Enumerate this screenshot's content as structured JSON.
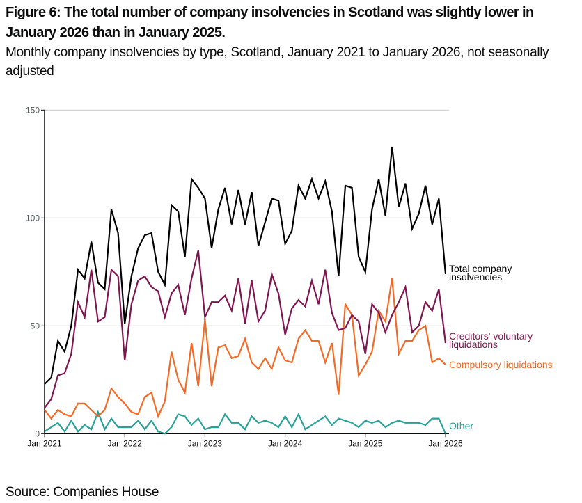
{
  "figure": {
    "title": "Figure 6: The total number of company insolvencies in Scotland was slightly lower in January 2026 than in January 2025.",
    "subtitle": "Monthly company insolvencies by type, Scotland, January 2021 to January 2026, not seasonally adjusted",
    "source": "Source: Companies House"
  },
  "chart_data": {
    "type": "line",
    "title": "Monthly company insolvencies by type, Scotland, January 2021 to January 2026, not seasonally adjusted",
    "xlabel": "",
    "ylabel": "",
    "ylim": [
      0,
      150
    ],
    "yticks": [
      0,
      50,
      100,
      150
    ],
    "xticks": [
      {
        "index": 0,
        "label": "Jan 2021"
      },
      {
        "index": 12,
        "label": "Jan 2022"
      },
      {
        "index": 24,
        "label": "Jan 2023"
      },
      {
        "index": 36,
        "label": "Jan 2024"
      },
      {
        "index": 48,
        "label": "Jan 2025"
      },
      {
        "index": 60,
        "label": "Jan 2026"
      }
    ],
    "grid": true,
    "legend": "direct labels at right end of lines",
    "x_start": "Jan 2021",
    "x_end": "Jan 2026",
    "frequency": "monthly",
    "series": [
      {
        "name": "Total company insolvencies",
        "label_lines": [
          "Total company",
          "insolvencies"
        ],
        "color": "#000000",
        "values": [
          23,
          26,
          43,
          38,
          50,
          76,
          72,
          89,
          70,
          67,
          104,
          93,
          51,
          73,
          86,
          92,
          93,
          75,
          69,
          106,
          103,
          82,
          118,
          114,
          109,
          86,
          104,
          114,
          97,
          113,
          97,
          112,
          87,
          98,
          109,
          108,
          88,
          94,
          115,
          109,
          118,
          109,
          117,
          103,
          73,
          115,
          114,
          82,
          75,
          104,
          118,
          101,
          133,
          105,
          116,
          95,
          102,
          115,
          97,
          109,
          74
        ]
      },
      {
        "name": "Creditors' voluntary liquidations",
        "label_lines": [
          "Creditors' voluntary",
          "liquidations"
        ],
        "color": "#801650",
        "values": [
          12,
          16,
          27,
          28,
          37,
          61,
          54,
          76,
          52,
          54,
          76,
          73,
          34,
          60,
          71,
          73,
          68,
          66,
          54,
          65,
          69,
          55,
          72,
          85,
          54,
          61,
          61,
          64,
          57,
          72,
          51,
          71,
          52,
          57,
          74,
          65,
          46,
          58,
          62,
          59,
          71,
          60,
          76,
          56,
          48,
          49,
          55,
          52,
          37,
          60,
          56,
          47,
          55,
          61,
          68,
          47,
          50,
          61,
          57,
          67,
          42
        ]
      },
      {
        "name": "Compulsory liquidations",
        "label_lines": [
          "Compulsory liquidations"
        ],
        "color": "#f46a25",
        "values": [
          11,
          7,
          11,
          9,
          8,
          14,
          14,
          11,
          8,
          11,
          21,
          17,
          14,
          10,
          9,
          17,
          19,
          8,
          15,
          38,
          25,
          19,
          42,
          22,
          53,
          22,
          40,
          41,
          35,
          36,
          44,
          33,
          30,
          35,
          30,
          40,
          34,
          33,
          44,
          48,
          43,
          43,
          33,
          42,
          18,
          60,
          55,
          27,
          32,
          38,
          57,
          52,
          72,
          37,
          43,
          43,
          48,
          50,
          33,
          35,
          32
        ]
      },
      {
        "name": "Other",
        "label_lines": [
          "Other"
        ],
        "color": "#28a197",
        "values": [
          1,
          3,
          5,
          1,
          6,
          1,
          4,
          2,
          10,
          2,
          7,
          3,
          3,
          3,
          6,
          2,
          6,
          1,
          0,
          3,
          9,
          8,
          4,
          7,
          2,
          3,
          3,
          9,
          5,
          5,
          2,
          8,
          5,
          6,
          5,
          3,
          8,
          3,
          9,
          2,
          4,
          6,
          8,
          4,
          7,
          6,
          5,
          3,
          6,
          5,
          6,
          3,
          5,
          6,
          5,
          5,
          5,
          4,
          7,
          7,
          0
        ]
      }
    ]
  }
}
